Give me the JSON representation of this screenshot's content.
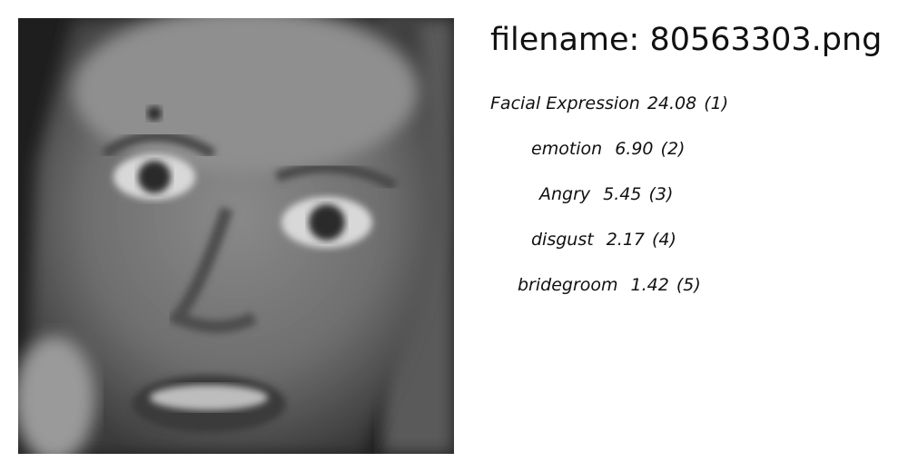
{
  "header": {
    "filename_text": "filename: 80563303.png"
  },
  "image": {
    "icon": "grayscale-face-photo"
  },
  "predictions": [
    {
      "label": "Facial Expression",
      "score": "24.08",
      "rank": "(1)"
    },
    {
      "label": "emotion",
      "score": "6.90",
      "rank": "(2)"
    },
    {
      "label": "Angry",
      "score": "5.45",
      "rank": "(3)"
    },
    {
      "label": "disgust",
      "score": "2.17",
      "rank": "(4)"
    },
    {
      "label": "bridegroom",
      "score": "1.42",
      "rank": "(5)"
    }
  ]
}
